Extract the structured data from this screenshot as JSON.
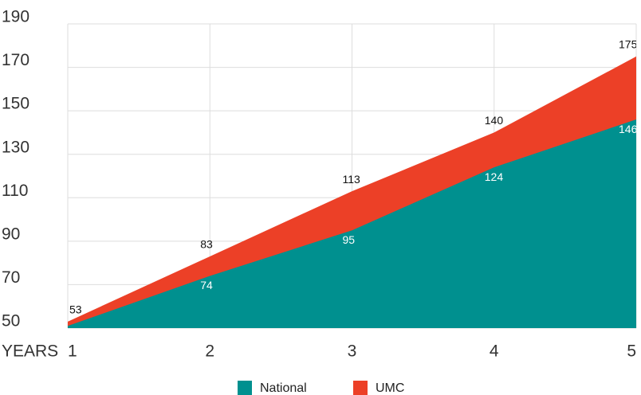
{
  "chart_data": {
    "type": "area",
    "x_label": "YEARS",
    "x": [
      1,
      2,
      3,
      4,
      5
    ],
    "xlim": [
      1,
      5
    ],
    "xticks": [
      1,
      2,
      3,
      4,
      5
    ],
    "ylim": [
      50,
      190
    ],
    "yticks": [
      50,
      70,
      90,
      110,
      130,
      150,
      170,
      190
    ],
    "grid": true,
    "legend": "bottom",
    "series": [
      {
        "name": "National",
        "color": "#00908f",
        "label_color": "#ffffff",
        "values": [
          51,
          74,
          95,
          124,
          146
        ]
      },
      {
        "name": "UMC",
        "color": "#ec4027",
        "label_color": "#111111",
        "values": [
          53,
          83,
          113,
          140,
          175
        ]
      }
    ]
  }
}
